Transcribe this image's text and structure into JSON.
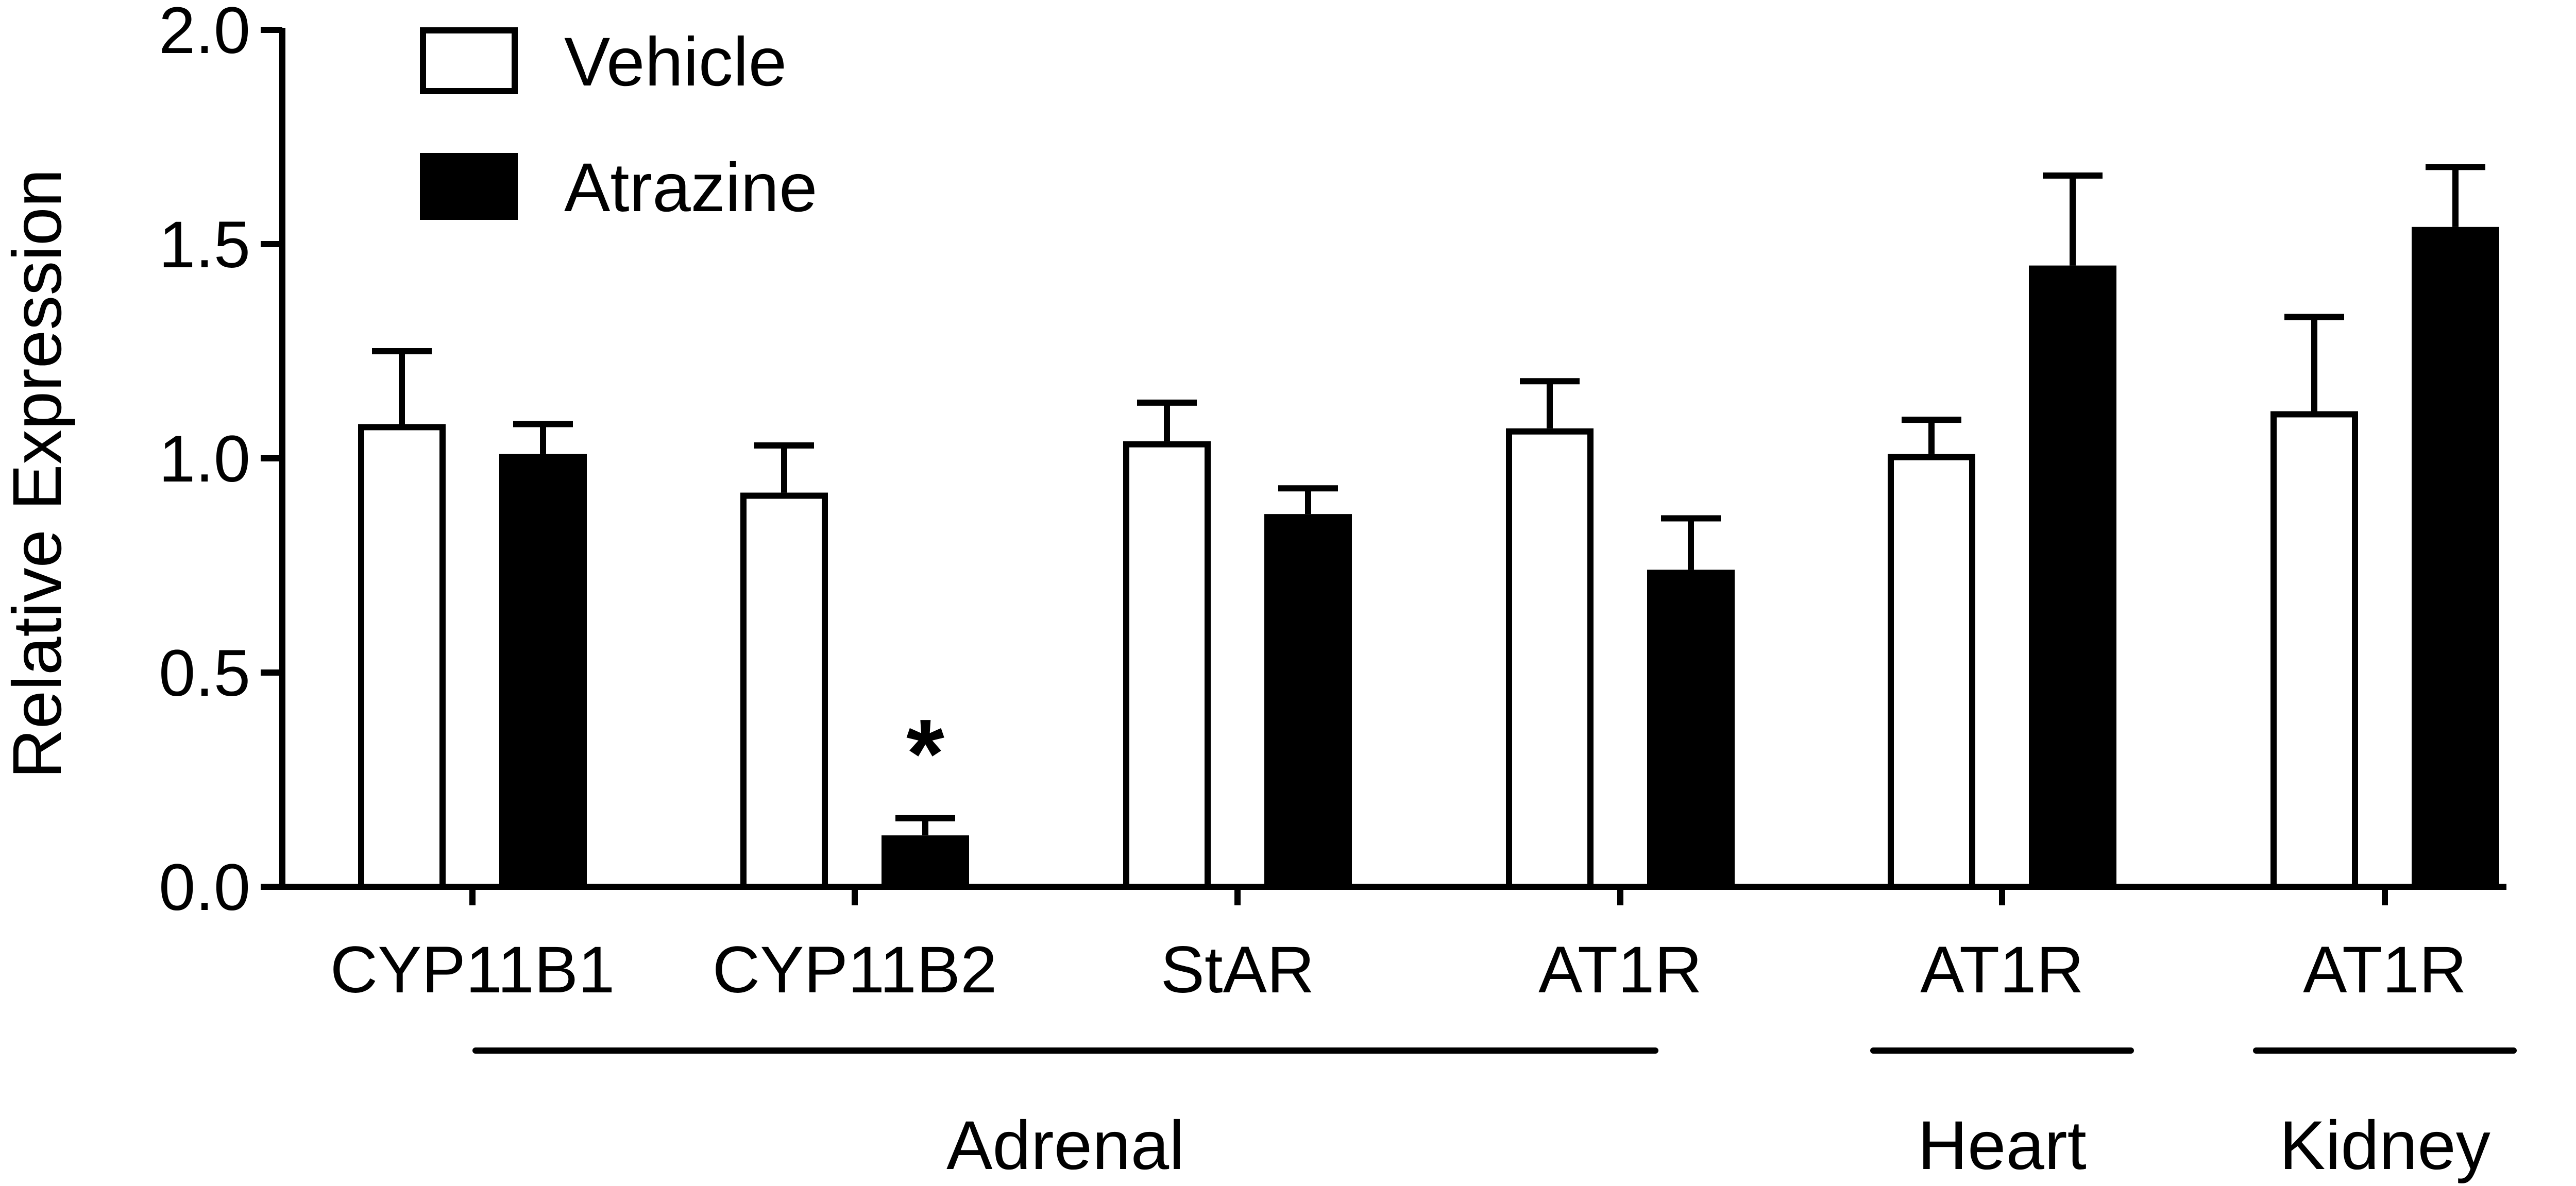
{
  "chart_data": {
    "type": "bar",
    "ylabel": "Relative Expression",
    "ylim": [
      0,
      2.0
    ],
    "yticks": [
      "0.0",
      "0.5",
      "1.0",
      "1.5",
      "2.0"
    ],
    "legend_position": "top-left",
    "grid": false,
    "categories": [
      "CYP11B1",
      "CYP11B2",
      "StAR",
      "AT1R",
      "AT1R",
      "AT1R"
    ],
    "groups": [
      {
        "label": "Adrenal",
        "span": [
          0,
          3
        ]
      },
      {
        "label": "Heart",
        "span": [
          4,
          4
        ]
      },
      {
        "label": "Kidney",
        "span": [
          5,
          5
        ]
      }
    ],
    "series": [
      {
        "name": "Vehicle",
        "fill": "#ffffff",
        "values": [
          1.08,
          0.92,
          1.04,
          1.07,
          1.01,
          1.11
        ],
        "errors": [
          0.17,
          0.11,
          0.09,
          0.11,
          0.08,
          0.22
        ]
      },
      {
        "name": "Atrazine",
        "fill": "#000000",
        "values": [
          1.01,
          0.12,
          0.87,
          0.74,
          1.45,
          1.54
        ],
        "errors": [
          0.07,
          0.04,
          0.06,
          0.12,
          0.21,
          0.14
        ]
      }
    ],
    "annotations": [
      {
        "text": "*",
        "category_index": 1,
        "series_index": 1
      }
    ]
  }
}
